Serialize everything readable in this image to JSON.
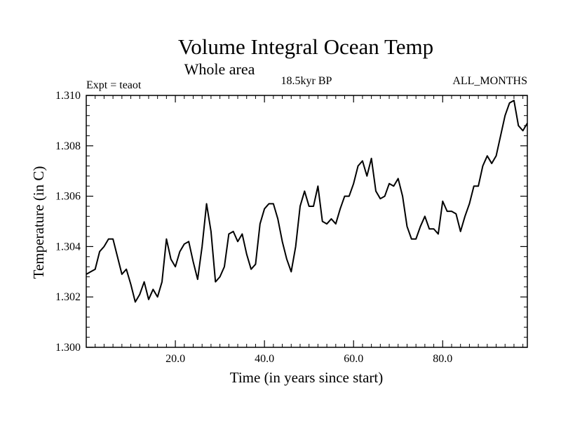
{
  "chart_data": {
    "type": "line",
    "title": "Volume Integral Ocean Temp",
    "subtitle": "Whole area",
    "left_label": "Expt = teaot",
    "center_label": "18.5kyr BP",
    "right_label": "ALL_MONTHS",
    "xlabel": "Time (in years since start)",
    "ylabel": "Temperature (in C)",
    "xlim": [
      0,
      99
    ],
    "ylim": [
      1.3,
      1.31
    ],
    "xticks": [
      20,
      40,
      60,
      80
    ],
    "xtick_labels": [
      "20.0",
      "40.0",
      "60.0",
      "80.0"
    ],
    "yticks": [
      1.3,
      1.302,
      1.304,
      1.306,
      1.308,
      1.31
    ],
    "ytick_labels": [
      "1.300",
      "1.302",
      "1.304",
      "1.306",
      "1.308",
      "1.310"
    ],
    "x_minor_step": 2,
    "y_minor_step": 0.0004,
    "legend": "none",
    "grid": false,
    "series": [
      {
        "name": "Volume Integral Ocean Temp",
        "color": "#000000",
        "x": [
          0,
          1,
          2,
          3,
          4,
          5,
          6,
          7,
          8,
          9,
          10,
          11,
          12,
          13,
          14,
          15,
          16,
          17,
          18,
          19,
          20,
          21,
          22,
          23,
          24,
          25,
          26,
          27,
          28,
          29,
          30,
          31,
          32,
          33,
          34,
          35,
          36,
          37,
          38,
          39,
          40,
          41,
          42,
          43,
          44,
          45,
          46,
          47,
          48,
          49,
          50,
          51,
          52,
          53,
          54,
          55,
          56,
          57,
          58,
          59,
          60,
          61,
          62,
          63,
          64,
          65,
          66,
          67,
          68,
          69,
          70,
          71,
          72,
          73,
          74,
          75,
          76,
          77,
          78,
          79,
          80,
          81,
          82,
          83,
          84,
          85,
          86,
          87,
          88,
          89,
          90,
          91,
          92,
          93,
          94,
          95,
          96,
          97,
          98,
          99
        ],
        "values": [
          1.3029,
          1.303,
          1.3031,
          1.3038,
          1.304,
          1.3043,
          1.3043,
          1.3036,
          1.3029,
          1.3031,
          1.3025,
          1.3018,
          1.3021,
          1.3026,
          1.3019,
          1.3023,
          1.302,
          1.3026,
          1.3043,
          1.3035,
          1.3032,
          1.3038,
          1.3041,
          1.3042,
          1.3034,
          1.3027,
          1.304,
          1.3057,
          1.3046,
          1.3026,
          1.3028,
          1.3032,
          1.3045,
          1.3046,
          1.3042,
          1.3045,
          1.3037,
          1.3031,
          1.3033,
          1.3049,
          1.3055,
          1.3057,
          1.3057,
          1.3051,
          1.3042,
          1.3035,
          1.303,
          1.304,
          1.3056,
          1.3062,
          1.3056,
          1.3056,
          1.3064,
          1.305,
          1.3049,
          1.3051,
          1.3049,
          1.3055,
          1.306,
          1.306,
          1.3065,
          1.3072,
          1.3074,
          1.3068,
          1.3075,
          1.3062,
          1.3059,
          1.306,
          1.3065,
          1.3064,
          1.3067,
          1.306,
          1.3048,
          1.3043,
          1.3043,
          1.3048,
          1.3052,
          1.3047,
          1.3047,
          1.3045,
          1.3058,
          1.3054,
          1.3054,
          1.3053,
          1.3046,
          1.3052,
          1.3057,
          1.3064,
          1.3064,
          1.3072,
          1.3076,
          1.3073,
          1.3076,
          1.3084,
          1.3092,
          1.3097,
          1.3098,
          1.3088,
          1.3086,
          1.3089
        ]
      }
    ]
  }
}
